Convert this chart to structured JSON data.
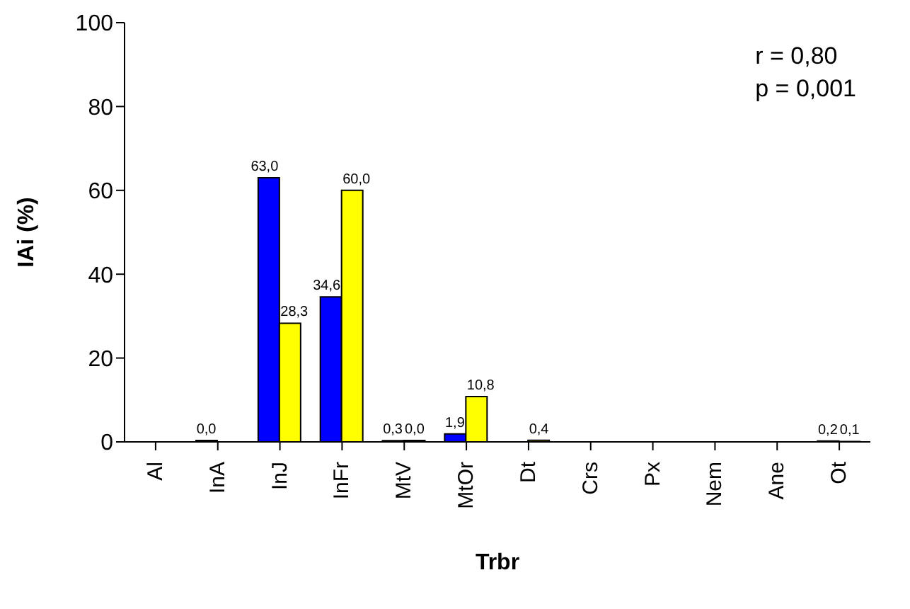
{
  "chart_data": {
    "type": "bar",
    "xlabel": "Trbr",
    "ylabel": "IAi (%)",
    "annotations": [
      "r = 0,80",
      "p = 0,001"
    ],
    "categories": [
      "Al",
      "InA",
      "InJ",
      "InFr",
      "MtV",
      "MtOr",
      "Dt",
      "Crs",
      "Px",
      "Nem",
      "Ane",
      "Ot"
    ],
    "series": [
      {
        "color": "#0000ff",
        "values": [
          null,
          0.0,
          63.0,
          34.6,
          0.3,
          1.9,
          null,
          null,
          null,
          null,
          null,
          0.2
        ],
        "value_labels": [
          null,
          "0,0",
          "63,0",
          "34,6",
          "0,3",
          "1,9",
          null,
          null,
          null,
          null,
          null,
          "0,2"
        ]
      },
      {
        "color": "#ffff00",
        "values": [
          null,
          null,
          28.3,
          60.0,
          0.0,
          10.8,
          0.4,
          null,
          null,
          null,
          null,
          0.1
        ],
        "value_labels": [
          null,
          null,
          "28,3",
          "60,0",
          "0,0",
          "10,8",
          "0,4",
          null,
          null,
          null,
          null,
          "0,1"
        ]
      }
    ],
    "ylim": [
      0,
      100
    ],
    "yticks": [
      0,
      20,
      40,
      60,
      80,
      100
    ],
    "grid": false
  }
}
